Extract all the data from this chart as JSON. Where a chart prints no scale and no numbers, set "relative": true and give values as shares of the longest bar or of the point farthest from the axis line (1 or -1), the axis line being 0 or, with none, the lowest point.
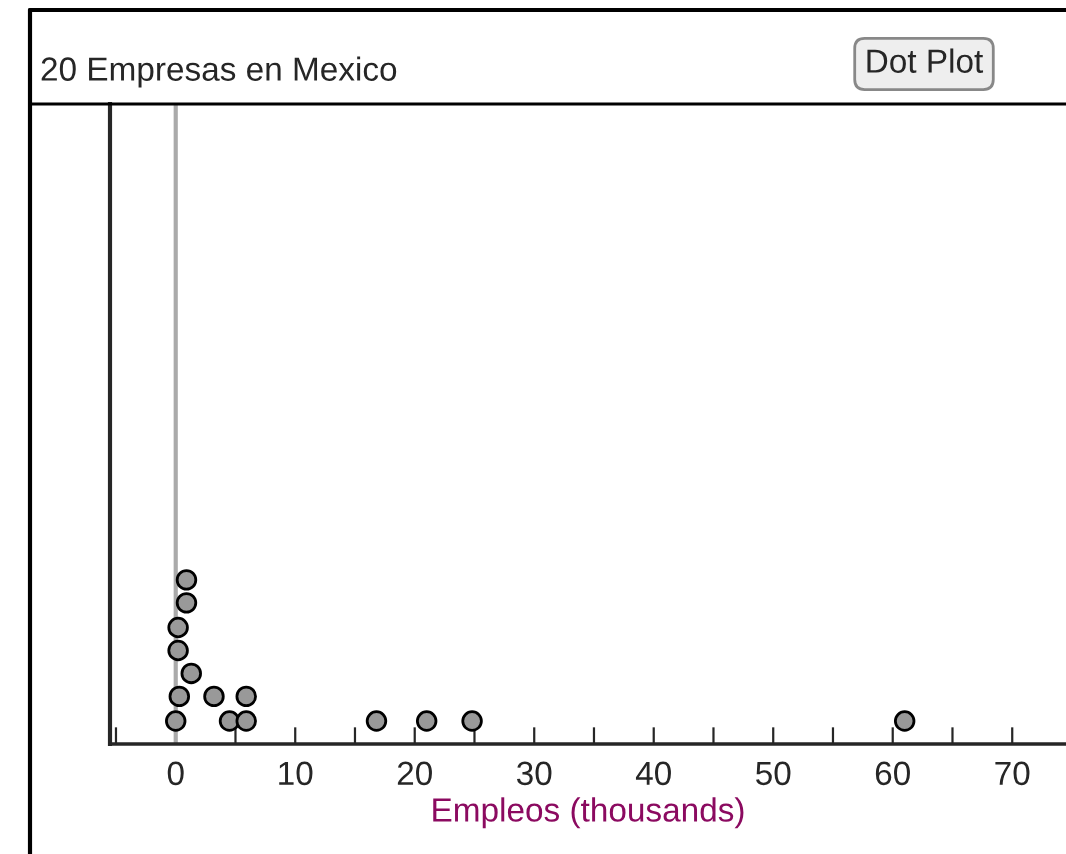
{
  "chart_data": {
    "type": "scatter",
    "title": "20 Empresas en Mexico",
    "xlabel": "Empleos (thousands)",
    "annotations": [
      "Dot Plot"
    ],
    "relative": true,
    "marker": "circle",
    "grid": false,
    "x": [
      0,
      4.5,
      5.9,
      16.8,
      21,
      24.8,
      61,
      0.3,
      3.2,
      5.9,
      1.3,
      0.2,
      0.2,
      0.9,
      0.9
    ],
    "values": [
      0.14,
      0.14,
      0.14,
      0.14,
      0.14,
      0.14,
      0.14,
      0.29,
      0.29,
      0.29,
      0.43,
      0.57,
      0.71,
      0.86,
      1
    ],
    "color": "#999999",
    "xlim": [
      -5.5,
      74.5
    ],
    "xticks": [
      {
        "value": -5,
        "label": null
      },
      0,
      {
        "value": 5,
        "label": null
      },
      10,
      {
        "value": 15,
        "label": null
      },
      20,
      {
        "value": 25,
        "label": null
      },
      30,
      {
        "value": 35,
        "label": null
      },
      40,
      {
        "value": 45,
        "label": null
      },
      50,
      {
        "value": 55,
        "label": null
      },
      60,
      {
        "value": 65,
        "label": null
      },
      70
    ],
    "ref_lines": [
      {
        "axis": "x",
        "value": 0,
        "label": null,
        "color": "#aaaaaa"
      }
    ]
  }
}
